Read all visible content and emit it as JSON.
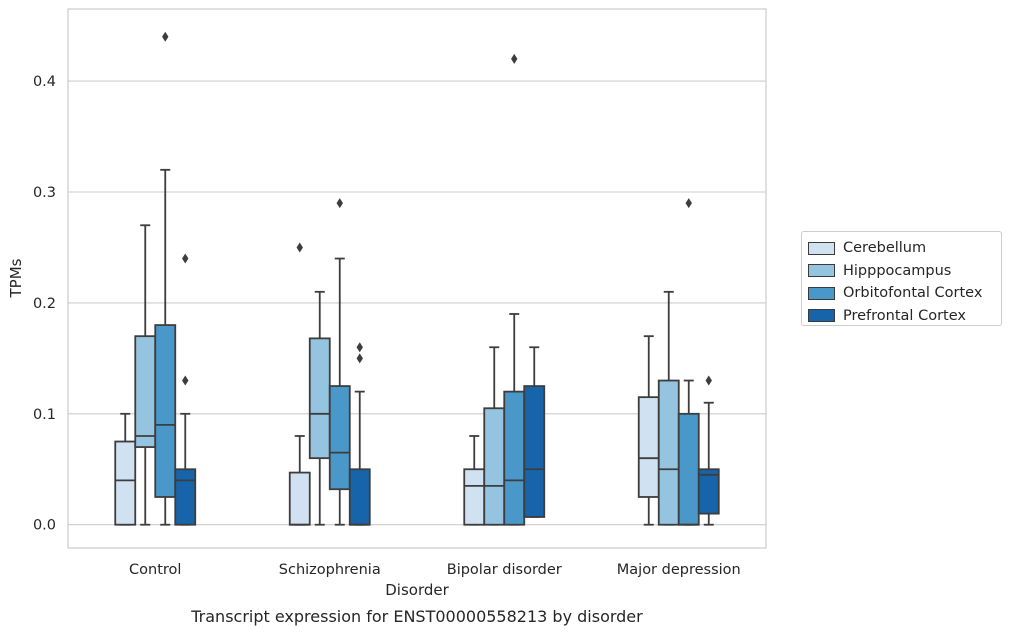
{
  "chart_data": {
    "type": "box",
    "title": "Transcript expression for ENST00000558213 by disorder",
    "xlabel": "Disorder",
    "ylabel": "TPMs",
    "ylim": [
      -0.021,
      0.465
    ],
    "yticks": [
      "0.0",
      "0.1",
      "0.2",
      "0.3",
      "0.4"
    ],
    "grid": true,
    "legend_position": "right",
    "categories": [
      "Control",
      "Schizophrenia",
      "Bipolar disorder",
      "Major depression"
    ],
    "series": [
      {
        "name": "Cerebellum",
        "color": "#d0e1f2",
        "boxes": [
          {
            "whislo": 0.0,
            "q1": 0.0,
            "med": 0.04,
            "q3": 0.075,
            "whishi": 0.1,
            "fliers": []
          },
          {
            "whislo": 0.0,
            "q1": 0.0,
            "med": 0.0,
            "q3": 0.047,
            "whishi": 0.08,
            "fliers": [
              0.25
            ]
          },
          {
            "whislo": 0.0,
            "q1": 0.0,
            "med": 0.035,
            "q3": 0.05,
            "whishi": 0.08,
            "fliers": []
          },
          {
            "whislo": 0.0,
            "q1": 0.025,
            "med": 0.06,
            "q3": 0.115,
            "whishi": 0.17,
            "fliers": []
          }
        ]
      },
      {
        "name": "Hipppocampus",
        "color": "#94c4df",
        "boxes": [
          {
            "whislo": 0.0,
            "q1": 0.07,
            "med": 0.08,
            "q3": 0.17,
            "whishi": 0.27,
            "fliers": []
          },
          {
            "whislo": 0.0,
            "q1": 0.06,
            "med": 0.1,
            "q3": 0.168,
            "whishi": 0.21,
            "fliers": []
          },
          {
            "whislo": 0.0,
            "q1": 0.0,
            "med": 0.035,
            "q3": 0.105,
            "whishi": 0.16,
            "fliers": []
          },
          {
            "whislo": 0.0,
            "q1": 0.0,
            "med": 0.05,
            "q3": 0.13,
            "whishi": 0.21,
            "fliers": []
          }
        ]
      },
      {
        "name": "Orbitofontal Cortex",
        "color": "#4a98c9",
        "boxes": [
          {
            "whislo": 0.0,
            "q1": 0.025,
            "med": 0.09,
            "q3": 0.18,
            "whishi": 0.32,
            "fliers": [
              0.44
            ]
          },
          {
            "whislo": 0.0,
            "q1": 0.032,
            "med": 0.065,
            "q3": 0.125,
            "whishi": 0.24,
            "fliers": [
              0.29
            ]
          },
          {
            "whislo": 0.0,
            "q1": 0.0,
            "med": 0.04,
            "q3": 0.12,
            "whishi": 0.19,
            "fliers": [
              0.42
            ]
          },
          {
            "whislo": 0.0,
            "q1": 0.0,
            "med": 0.0,
            "q3": 0.1,
            "whishi": 0.13,
            "fliers": [
              0.29
            ]
          }
        ]
      },
      {
        "name": "Prefrontal Cortex",
        "color": "#1764ab",
        "boxes": [
          {
            "whislo": 0.0,
            "q1": 0.0,
            "med": 0.04,
            "q3": 0.05,
            "whishi": 0.1,
            "fliers": [
              0.13,
              0.24
            ]
          },
          {
            "whislo": 0.0,
            "q1": 0.0,
            "med": 0.0,
            "q3": 0.05,
            "whishi": 0.12,
            "fliers": [
              0.15,
              0.16
            ]
          },
          {
            "whislo": 0.007,
            "q1": 0.007,
            "med": 0.05,
            "q3": 0.125,
            "whishi": 0.16,
            "fliers": []
          },
          {
            "whislo": 0.0,
            "q1": 0.01,
            "med": 0.045,
            "q3": 0.05,
            "whishi": 0.11,
            "fliers": [
              0.13
            ]
          }
        ]
      }
    ]
  }
}
